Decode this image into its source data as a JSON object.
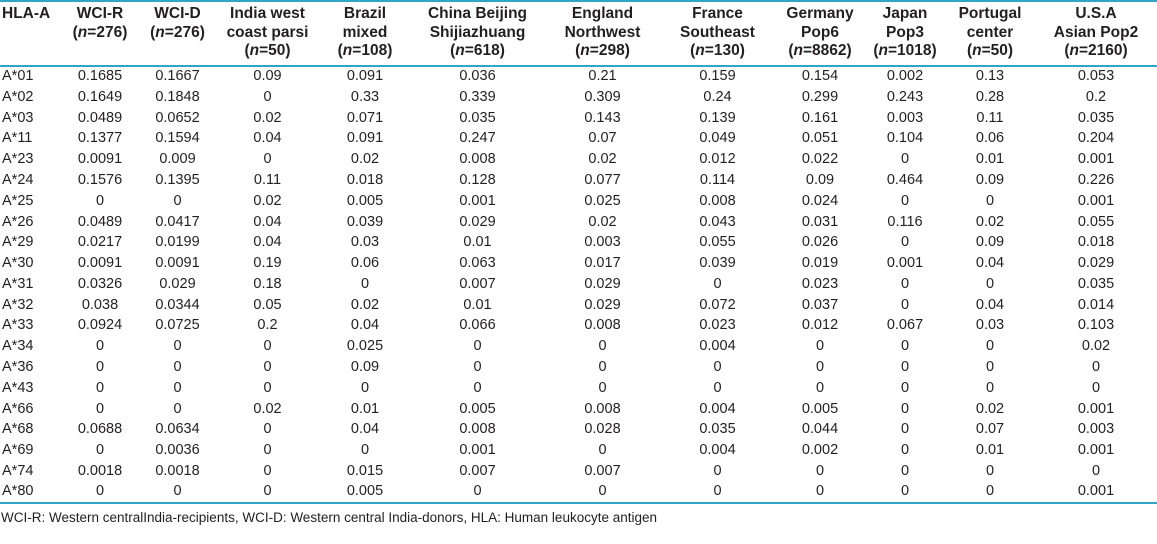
{
  "colors": {
    "accent": "#31a5c6",
    "text": "#231f20",
    "background": "#ffffff"
  },
  "table": {
    "corner_label": "HLA-A",
    "columns": [
      {
        "name": "WCI-R",
        "n_symbol": "n",
        "n_value": "276"
      },
      {
        "name": "WCI-D",
        "n_symbol": "n",
        "n_value": "276"
      },
      {
        "name": "India west\ncoast parsi",
        "n_symbol": "n",
        "n_value": "50"
      },
      {
        "name": "Brazil\nmixed",
        "n_symbol": "n",
        "n_value": "108"
      },
      {
        "name": "China Beijing\nShijiazhuang",
        "n_symbol": "n",
        "n_value": "618"
      },
      {
        "name": "England\nNorthwest",
        "n_symbol": "n",
        "n_value": "298"
      },
      {
        "name": "France\nSoutheast",
        "n_symbol": "n",
        "n_value": "130"
      },
      {
        "name": "Germany\nPop6",
        "n_symbol": "n",
        "n_value": "8862"
      },
      {
        "name": "Japan\nPop3",
        "n_symbol": "n",
        "n_value": "1018"
      },
      {
        "name": "Portugal\ncenter",
        "n_symbol": "n",
        "n_value": "50"
      },
      {
        "name": "U.S.A\nAsian Pop2",
        "n_symbol": "n",
        "n_value": "2160"
      }
    ],
    "rows": [
      {
        "allele": "A*01",
        "values": [
          "0.1685",
          "0.1667",
          "0.09",
          "0.091",
          "0.036",
          "0.21",
          "0.159",
          "0.154",
          "0.002",
          "0.13",
          "0.053"
        ]
      },
      {
        "allele": "A*02",
        "values": [
          "0.1649",
          "0.1848",
          "0",
          "0.33",
          "0.339",
          "0.309",
          "0.24",
          "0.299",
          "0.243",
          "0.28",
          "0.2"
        ]
      },
      {
        "allele": "A*03",
        "values": [
          "0.0489",
          "0.0652",
          "0.02",
          "0.071",
          "0.035",
          "0.143",
          "0.139",
          "0.161",
          "0.003",
          "0.11",
          "0.035"
        ]
      },
      {
        "allele": "A*11",
        "values": [
          "0.1377",
          "0.1594",
          "0.04",
          "0.091",
          "0.247",
          "0.07",
          "0.049",
          "0.051",
          "0.104",
          "0.06",
          "0.204"
        ]
      },
      {
        "allele": "A*23",
        "values": [
          "0.0091",
          "0.009",
          "0",
          "0.02",
          "0.008",
          "0.02",
          "0.012",
          "0.022",
          "0",
          "0.01",
          "0.001"
        ]
      },
      {
        "allele": "A*24",
        "values": [
          "0.1576",
          "0.1395",
          "0.11",
          "0.018",
          "0.128",
          "0.077",
          "0.114",
          "0.09",
          "0.464",
          "0.09",
          "0.226"
        ]
      },
      {
        "allele": "A*25",
        "values": [
          "0",
          "0",
          "0.02",
          "0.005",
          "0.001",
          "0.025",
          "0.008",
          "0.024",
          "0",
          "0",
          "0.001"
        ]
      },
      {
        "allele": "A*26",
        "values": [
          "0.0489",
          "0.0417",
          "0.04",
          "0.039",
          "0.029",
          "0.02",
          "0.043",
          "0.031",
          "0.116",
          "0.02",
          "0.055"
        ]
      },
      {
        "allele": "A*29",
        "values": [
          "0.0217",
          "0.0199",
          "0.04",
          "0.03",
          "0.01",
          "0.003",
          "0.055",
          "0.026",
          "0",
          "0.09",
          "0.018"
        ]
      },
      {
        "allele": "A*30",
        "values": [
          "0.0091",
          "0.0091",
          "0.19",
          "0.06",
          "0.063",
          "0.017",
          "0.039",
          "0.019",
          "0.001",
          "0.04",
          "0.029"
        ]
      },
      {
        "allele": "A*31",
        "values": [
          "0.0326",
          "0.029",
          "0.18",
          "0",
          "0.007",
          "0.029",
          "0",
          "0.023",
          "0",
          "0",
          "0.035"
        ]
      },
      {
        "allele": "A*32",
        "values": [
          "0.038",
          "0.0344",
          "0.05",
          "0.02",
          "0.01",
          "0.029",
          "0.072",
          "0.037",
          "0",
          "0.04",
          "0.014"
        ]
      },
      {
        "allele": "A*33",
        "values": [
          "0.0924",
          "0.0725",
          "0.2",
          "0.04",
          "0.066",
          "0.008",
          "0.023",
          "0.012",
          "0.067",
          "0.03",
          "0.103"
        ]
      },
      {
        "allele": "A*34",
        "values": [
          "0",
          "0",
          "0",
          "0.025",
          "0",
          "0",
          "0.004",
          "0",
          "0",
          "0",
          "0.02"
        ]
      },
      {
        "allele": "A*36",
        "values": [
          "0",
          "0",
          "0",
          "0.09",
          "0",
          "0",
          "0",
          "0",
          "0",
          "0",
          "0"
        ]
      },
      {
        "allele": "A*43",
        "values": [
          "0",
          "0",
          "0",
          "0",
          "0",
          "0",
          "0",
          "0",
          "0",
          "0",
          "0"
        ]
      },
      {
        "allele": "A*66",
        "values": [
          "0",
          "0",
          "0.02",
          "0.01",
          "0.005",
          "0.008",
          "0.004",
          "0.005",
          "0",
          "0.02",
          "0.001"
        ]
      },
      {
        "allele": "A*68",
        "values": [
          "0.0688",
          "0.0634",
          "0",
          "0.04",
          "0.008",
          "0.028",
          "0.035",
          "0.044",
          "0",
          "0.07",
          "0.003"
        ]
      },
      {
        "allele": "A*69",
        "values": [
          "0",
          "0.0036",
          "0",
          "0",
          "0.001",
          "0",
          "0.004",
          "0.002",
          "0",
          "0.01",
          "0.001"
        ]
      },
      {
        "allele": "A*74",
        "values": [
          "0.0018",
          "0.0018",
          "0",
          "0.015",
          "0.007",
          "0.007",
          "0",
          "0",
          "0",
          "0",
          "0"
        ]
      },
      {
        "allele": "A*80",
        "values": [
          "0",
          "0",
          "0",
          "0.005",
          "0",
          "0",
          "0",
          "0",
          "0",
          "0",
          "0.001"
        ]
      }
    ],
    "footnote": "WCI-R: Western centralIndia-recipients, WCI-D: Western central India-donors, HLA: Human leukocyte antigen"
  }
}
